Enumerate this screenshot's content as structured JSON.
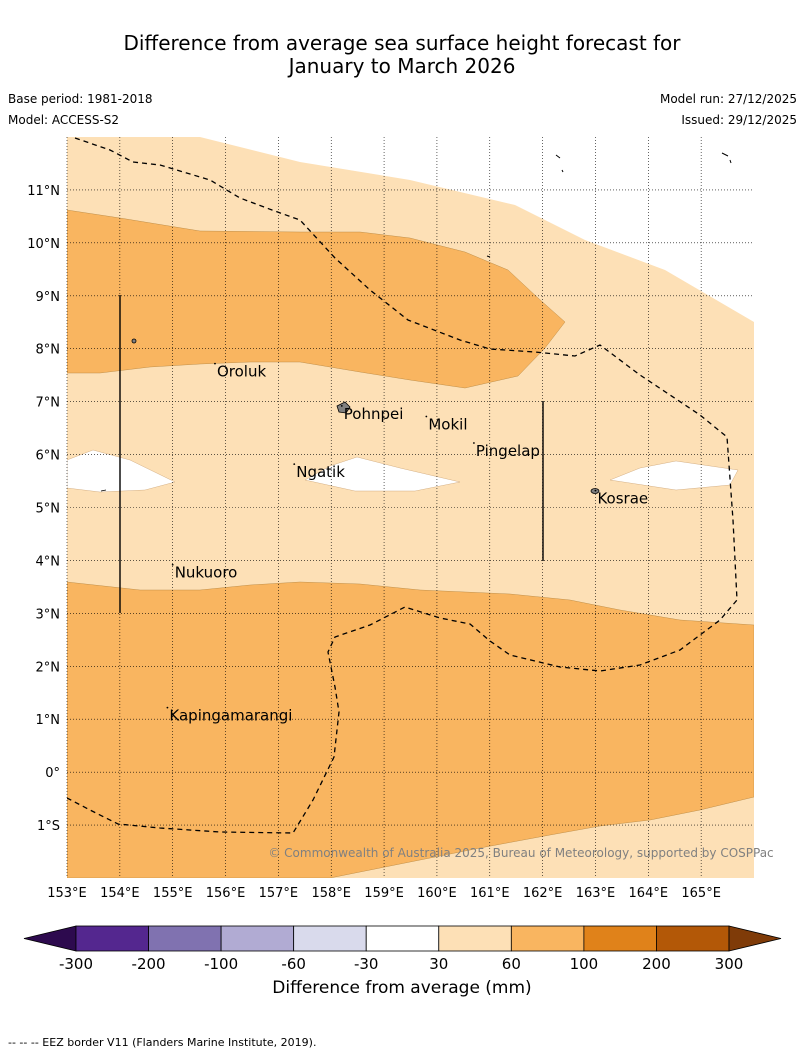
{
  "title": {
    "line1": "Difference from average sea surface height forecast for",
    "line2": "January to March 2026"
  },
  "meta": {
    "base_period": "Base period: 1981-2018",
    "model": "Model: ACCESS-S2",
    "model_run": "Model run: 27/12/2025",
    "issued": "Issued: 29/12/2025"
  },
  "map": {
    "lon_range": [
      153,
      166
    ],
    "lat_range": [
      -2,
      12
    ],
    "lat_ticks": [
      {
        "value": 11,
        "label": "11°N"
      },
      {
        "value": 10,
        "label": "10°N"
      },
      {
        "value": 9,
        "label": "9°N"
      },
      {
        "value": 8,
        "label": "8°N"
      },
      {
        "value": 7,
        "label": "7°N"
      },
      {
        "value": 6,
        "label": "6°N"
      },
      {
        "value": 5,
        "label": "5°N"
      },
      {
        "value": 4,
        "label": "4°N"
      },
      {
        "value": 3,
        "label": "3°N"
      },
      {
        "value": 2,
        "label": "2°N"
      },
      {
        "value": 1,
        "label": "1°N"
      },
      {
        "value": 0,
        "label": "0°"
      },
      {
        "value": -1,
        "label": "1°S"
      }
    ],
    "lon_ticks": [
      {
        "value": 153,
        "label": "153°E"
      },
      {
        "value": 154,
        "label": "154°E"
      },
      {
        "value": 155,
        "label": "155°E"
      },
      {
        "value": 156,
        "label": "156°E"
      },
      {
        "value": 157,
        "label": "157°E"
      },
      {
        "value": 158,
        "label": "158°E"
      },
      {
        "value": 159,
        "label": "159°E"
      },
      {
        "value": 160,
        "label": "160°E"
      },
      {
        "value": 161,
        "label": "161°E"
      },
      {
        "value": 162,
        "label": "162°E"
      },
      {
        "value": 163,
        "label": "163°E"
      },
      {
        "value": 164,
        "label": "164°E"
      },
      {
        "value": 165,
        "label": "165°E"
      }
    ],
    "places": [
      {
        "name": "Oroluk",
        "lon": 155.8,
        "lat": 7.7
      },
      {
        "name": "Pohnpei",
        "lon": 158.2,
        "lat": 6.9
      },
      {
        "name": "Mokil",
        "lon": 159.8,
        "lat": 6.7
      },
      {
        "name": "Pingelap",
        "lon": 160.7,
        "lat": 6.2
      },
      {
        "name": "Ngatik",
        "lon": 157.3,
        "lat": 5.8
      },
      {
        "name": "Kosrae",
        "lon": 163.0,
        "lat": 5.3
      },
      {
        "name": "Nukuoro",
        "lon": 155.0,
        "lat": 3.9
      },
      {
        "name": "Kapingamarangi",
        "lon": 154.9,
        "lat": 1.2
      }
    ],
    "copyright": "© Commonwealth of Australia 2025, Bureau of Meteorology, supported by COSPPac"
  },
  "colorbar": {
    "ticks": [
      "-300",
      "-200",
      "-100",
      "-60",
      "-30",
      "30",
      "60",
      "100",
      "200",
      "300"
    ],
    "colors": [
      "#2d0a4e",
      "#54278f",
      "#8072b0",
      "#b1abd3",
      "#d9daec",
      "#ffffff",
      "#fde0b6",
      "#f9b560",
      "#e0821a",
      "#b35807",
      "#7f3b08"
    ],
    "label": "Difference from average (mm)"
  },
  "footer": "-- -- -- EEZ border V11 (Flanders Marine Institute, 2019)."
}
